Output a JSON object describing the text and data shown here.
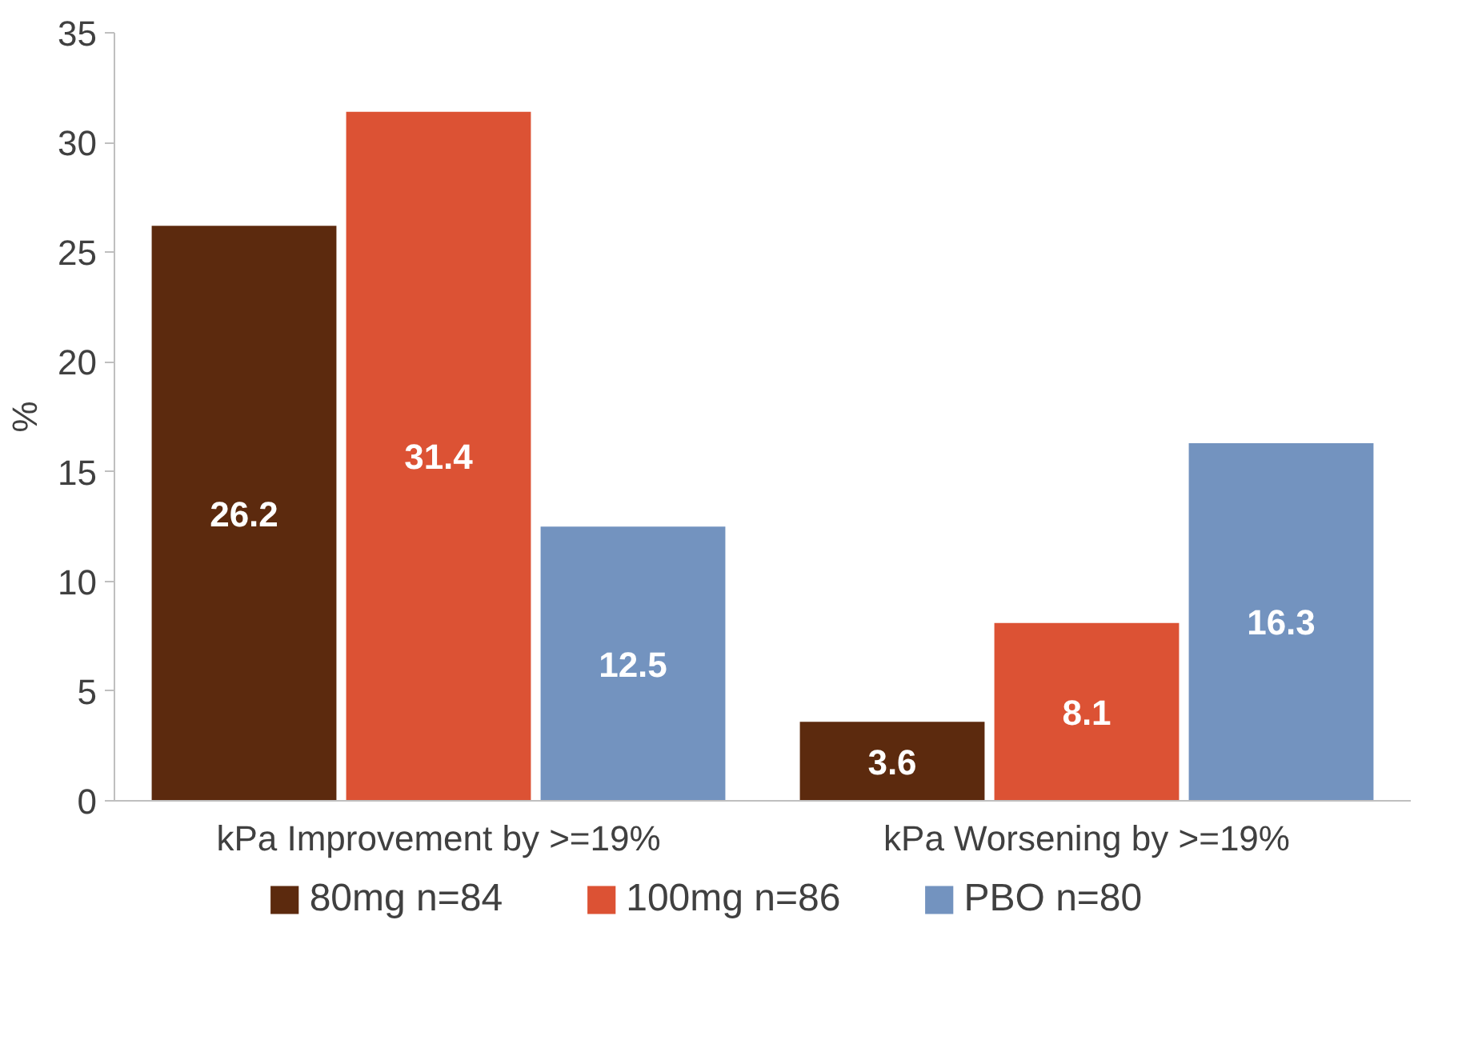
{
  "chart_data": {
    "type": "bar",
    "ylabel": "%",
    "categories": [
      "kPa Improvement by >=19%",
      "kPa Worsening by >=19%"
    ],
    "series": [
      {
        "name": "80mg n=84",
        "color": "#5c2a0e",
        "values": [
          26.2,
          3.6
        ]
      },
      {
        "name": "100mg n=86",
        "color": "#dc5234",
        "values": [
          31.4,
          8.1
        ]
      },
      {
        "name": "PBO n=80",
        "color": "#7393bf",
        "values": [
          12.5,
          16.3
        ]
      }
    ],
    "ylim": [
      0,
      35
    ],
    "yticks": [
      0,
      5,
      10,
      15,
      20,
      25,
      30,
      35
    ],
    "data_labels": true,
    "legend": "bottom",
    "grid": false
  }
}
